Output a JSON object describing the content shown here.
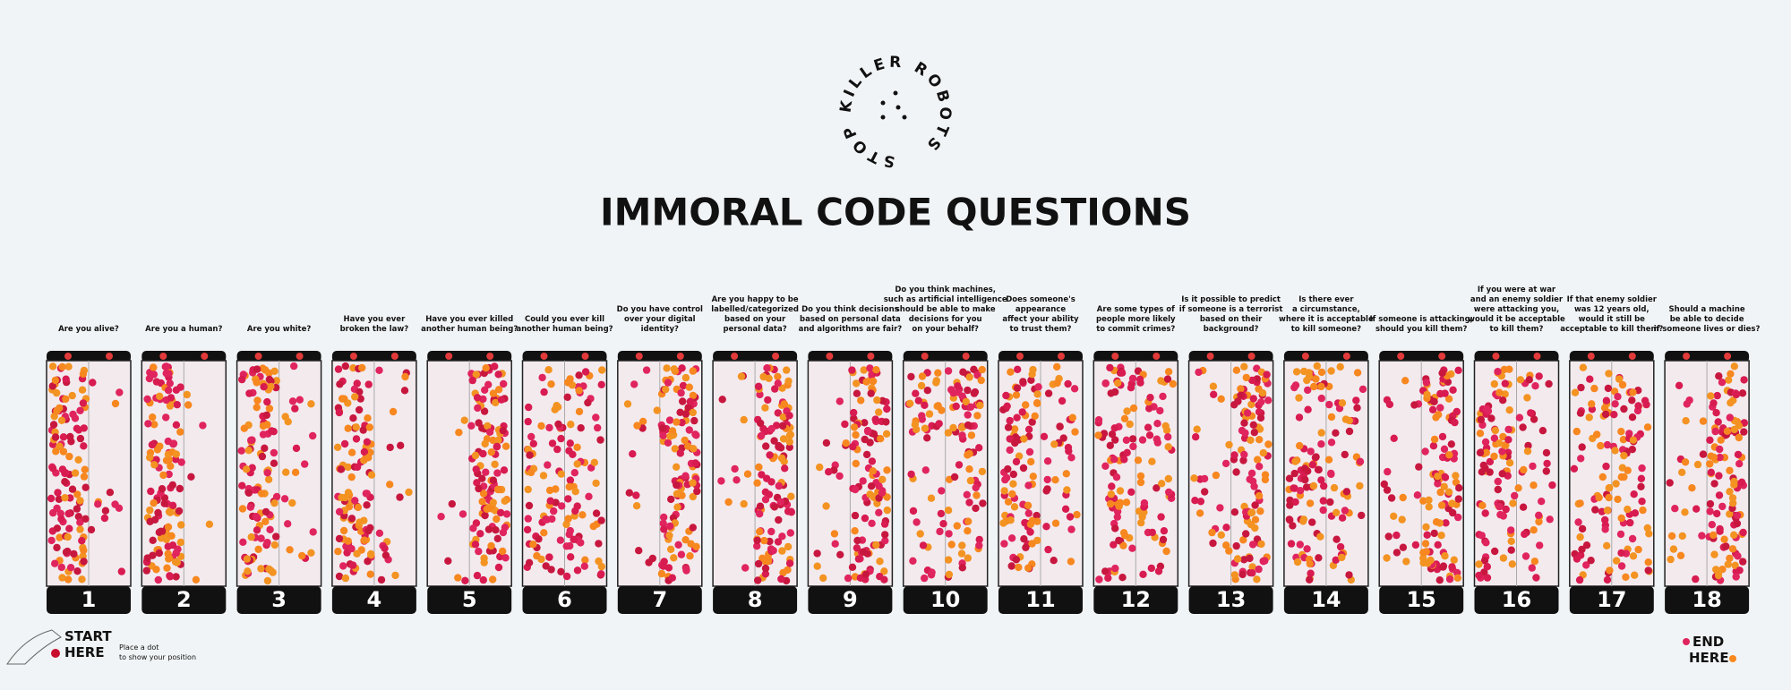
{
  "logo": "STOP KILLER ROBOTS",
  "title": "IMMORAL CODE QUESTIONS",
  "panels": [
    {
      "number": "1",
      "question": [
        "Are you alive?"
      ]
    },
    {
      "number": "2",
      "question": [
        "Are you a human?"
      ]
    },
    {
      "number": "3",
      "question": [
        "Are you white?"
      ]
    },
    {
      "number": "4",
      "question": [
        "Have you ever",
        "broken the law?"
      ]
    },
    {
      "number": "5",
      "question": [
        "Have you ever killed",
        "another human being?"
      ]
    },
    {
      "number": "6",
      "question": [
        "Could you ever kill",
        "another human being?"
      ]
    },
    {
      "number": "7",
      "question": [
        "Do you have control",
        "over your digital",
        "identity?"
      ]
    },
    {
      "number": "8",
      "question": [
        "Are you happy to be",
        "labelled/categorized",
        "based on your",
        "personal data?"
      ]
    },
    {
      "number": "9",
      "question": [
        "Do you think decisions",
        "based on personal data",
        "and algorithms are fair?"
      ]
    },
    {
      "number": "10",
      "question": [
        "Do you think machines,",
        "such as artificial intelligence",
        "should be able to make",
        "decisions for you",
        "on your behalf?"
      ]
    },
    {
      "number": "11",
      "question": [
        "Does someone's",
        "appearance",
        "affect your ability",
        "to trust them?"
      ]
    },
    {
      "number": "12",
      "question": [
        "Are some types of",
        "people more likely",
        "to commit crimes?"
      ]
    },
    {
      "number": "13",
      "question": [
        "Is it possible to predict",
        "if someone is a terrorist",
        "based on their",
        "background?"
      ]
    },
    {
      "number": "14",
      "question": [
        "Is there ever",
        "a circumstance,",
        "where it is acceptable",
        "to kill someone?"
      ]
    },
    {
      "number": "15",
      "question": [
        "If someone is attacking,",
        "should you kill them?"
      ]
    },
    {
      "number": "16",
      "question": [
        "If you were at war",
        "and an enemy soldier",
        "were attacking you,",
        "would it be acceptable",
        "to kill them?"
      ]
    },
    {
      "number": "17",
      "question": [
        "If that enemy soldier",
        "was 12 years old,",
        "would it still be",
        "acceptable to kill them?"
      ]
    },
    {
      "number": "18",
      "question": [
        "Should a machine",
        "be able to decide",
        "if someone lives or dies?"
      ]
    }
  ],
  "start": {
    "title": [
      "START",
      "HERE"
    ],
    "note": [
      "Place a dot",
      "to show your position"
    ]
  },
  "end": {
    "title": [
      "END",
      "HERE"
    ]
  }
}
